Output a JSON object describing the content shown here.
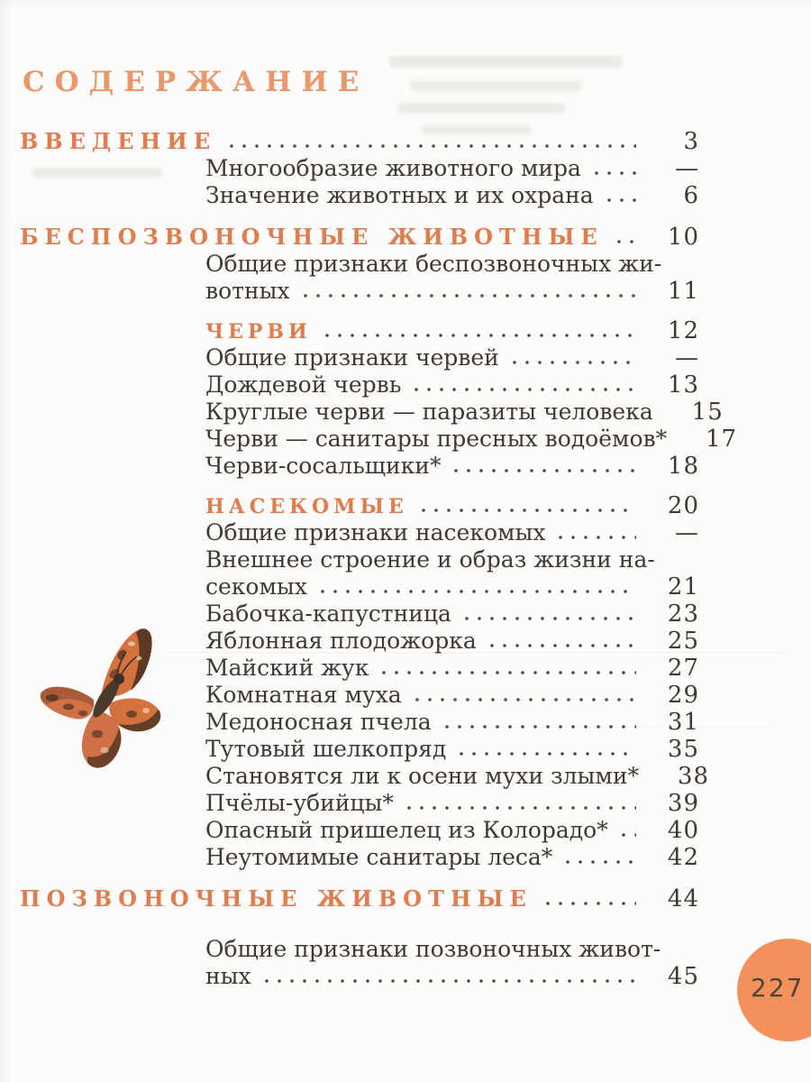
{
  "page": {
    "title": "СОДЕРЖАНИЕ",
    "page_number": "227",
    "title_color": "#e9976b",
    "accent_color": "#df7c50",
    "badge_color": "#f3915d",
    "text_color": "#3d3a36"
  },
  "toc": {
    "entries": [
      {
        "style": "h1",
        "lines": [
          "ВВЕДЕНИЕ"
        ],
        "page": "3",
        "leader": true
      },
      {
        "style": "sub",
        "lines": [
          "Многообразие животного мира"
        ],
        "page": "—",
        "leader": true
      },
      {
        "style": "sub",
        "lines": [
          "Значение животных и их охрана"
        ],
        "page": "6",
        "leader": true
      },
      {
        "style": "h1",
        "lines": [
          "БЕСПОЗВОНОЧНЫЕ ЖИВОТНЫЕ"
        ],
        "page": "10",
        "leader": true
      },
      {
        "style": "sub",
        "lines": [
          "Общие признаки беспозвоночных жи-",
          "вотных"
        ],
        "page": "11",
        "leader": true
      },
      {
        "style": "subhead",
        "lines": [
          "ЧЕРВИ"
        ],
        "page": "12",
        "leader": true
      },
      {
        "style": "sub",
        "lines": [
          "Общие признаки червей"
        ],
        "page": "—",
        "leader": true
      },
      {
        "style": "sub",
        "lines": [
          "Дождевой червь"
        ],
        "page": "13",
        "leader": true
      },
      {
        "style": "sub",
        "lines": [
          "Круглые черви — паразиты человека"
        ],
        "page": "15",
        "leader": false
      },
      {
        "style": "sub",
        "lines": [
          "Черви — санитары пресных водоёмов*"
        ],
        "page": "17",
        "leader": false
      },
      {
        "style": "sub",
        "lines": [
          "Черви-сосальщики*"
        ],
        "page": "18",
        "leader": true
      },
      {
        "style": "subhead",
        "lines": [
          "НАСЕКОМЫЕ"
        ],
        "page": "20",
        "leader": true
      },
      {
        "style": "sub",
        "lines": [
          "Общие признаки насекомых"
        ],
        "page": "—",
        "leader": true
      },
      {
        "style": "sub",
        "lines": [
          "Внешнее строение и образ жизни на-",
          "секомых"
        ],
        "page": "21",
        "leader": true
      },
      {
        "style": "sub",
        "lines": [
          "Бабочка-капустница"
        ],
        "page": "23",
        "leader": true
      },
      {
        "style": "sub",
        "lines": [
          "Яблонная плодожорка"
        ],
        "page": "25",
        "leader": true
      },
      {
        "style": "sub",
        "lines": [
          "Майский жук"
        ],
        "page": "27",
        "leader": true
      },
      {
        "style": "sub",
        "lines": [
          "Комнатная муха"
        ],
        "page": "29",
        "leader": true
      },
      {
        "style": "sub",
        "lines": [
          "Медоносная пчела"
        ],
        "page": "31",
        "leader": true
      },
      {
        "style": "sub",
        "lines": [
          "Тутовый шелкопряд"
        ],
        "page": "35",
        "leader": true
      },
      {
        "style": "sub",
        "lines": [
          "Становятся ли к осени мухи злыми*"
        ],
        "page": "38",
        "leader": false
      },
      {
        "style": "sub",
        "lines": [
          "Пчёлы-убийцы*"
        ],
        "page": "39",
        "leader": true
      },
      {
        "style": "sub",
        "lines": [
          "Опасный пришелец из Колорадо*"
        ],
        "page": "40",
        "leader": true
      },
      {
        "style": "sub",
        "lines": [
          "Неутомимые санитары леса*"
        ],
        "page": "42",
        "leader": true
      },
      {
        "style": "h1",
        "lines": [
          "ПОЗВОНОЧНЫЕ ЖИВОТНЫЕ"
        ],
        "page": "44",
        "leader": true
      },
      {
        "style": "sub",
        "spaced": true,
        "lines": [
          "Общие признаки позвоночных живот-",
          "ных"
        ],
        "page": "45",
        "leader": true
      }
    ]
  }
}
